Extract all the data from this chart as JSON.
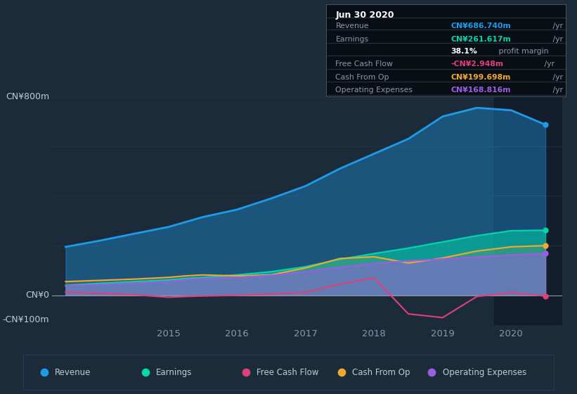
{
  "bg_color": "#1c2b3a",
  "plot_bg_color": "#1c2b3a",
  "grid_color": "#263749",
  "x": [
    2013.5,
    2014.0,
    2014.5,
    2015.0,
    2015.25,
    2015.5,
    2016.0,
    2016.5,
    2017.0,
    2017.5,
    2018.0,
    2018.5,
    2019.0,
    2019.5,
    2020.0,
    2020.5
  ],
  "revenue": [
    195,
    220,
    248,
    275,
    295,
    315,
    345,
    390,
    440,
    510,
    570,
    630,
    720,
    755,
    745,
    687
  ],
  "earnings": [
    40,
    48,
    55,
    62,
    68,
    72,
    82,
    95,
    115,
    145,
    168,
    190,
    215,
    240,
    260,
    262
  ],
  "free_cf": [
    12,
    8,
    2,
    -8,
    -5,
    -3,
    0,
    5,
    12,
    45,
    70,
    -75,
    -90,
    -5,
    10,
    -3
  ],
  "cash_op": [
    55,
    60,
    65,
    72,
    78,
    82,
    78,
    82,
    110,
    148,
    155,
    130,
    150,
    178,
    195,
    200
  ],
  "op_expenses": [
    38,
    43,
    48,
    56,
    62,
    67,
    72,
    80,
    95,
    112,
    128,
    138,
    146,
    154,
    162,
    169
  ],
  "ylabel_top": "CN¥800m",
  "ylabel_zero": "CN¥0",
  "ylabel_bot": "-CN¥100m",
  "ylim": [
    -120,
    840
  ],
  "xlim": [
    2013.3,
    2020.75
  ],
  "xticks": [
    2015,
    2016,
    2017,
    2018,
    2019,
    2020
  ],
  "colors": {
    "revenue": "#1e9be8",
    "earnings": "#00d4aa",
    "free_cf": "#e0407a",
    "cash_op": "#f0a830",
    "op_expenses": "#9b5de5"
  },
  "info_title": "Jun 30 2020",
  "info_rows": [
    {
      "label": "Revenue",
      "value": "CN¥686.740m",
      "color": "#1e9be8",
      "suffix": " /yr"
    },
    {
      "label": "Earnings",
      "value": "CN¥261.617m",
      "color": "#00d4aa",
      "suffix": " /yr"
    },
    {
      "label": "",
      "value": "38.1%",
      "color": "white",
      "suffix": " profit margin"
    },
    {
      "label": "Free Cash Flow",
      "value": "-CN¥2.948m",
      "color": "#e0407a",
      "suffix": " /yr"
    },
    {
      "label": "Cash From Op",
      "value": "CN¥199.698m",
      "color": "#f0a830",
      "suffix": " /yr"
    },
    {
      "label": "Operating Expenses",
      "value": "CN¥168.816m",
      "color": "#9b5de5",
      "suffix": " /yr"
    }
  ],
  "legend_items": [
    {
      "label": "Revenue",
      "color": "#1e9be8"
    },
    {
      "label": "Earnings",
      "color": "#00d4aa"
    },
    {
      "label": "Free Cash Flow",
      "color": "#e0407a"
    },
    {
      "label": "Cash From Op",
      "color": "#f0a830"
    },
    {
      "label": "Operating Expenses",
      "color": "#9b5de5"
    }
  ]
}
